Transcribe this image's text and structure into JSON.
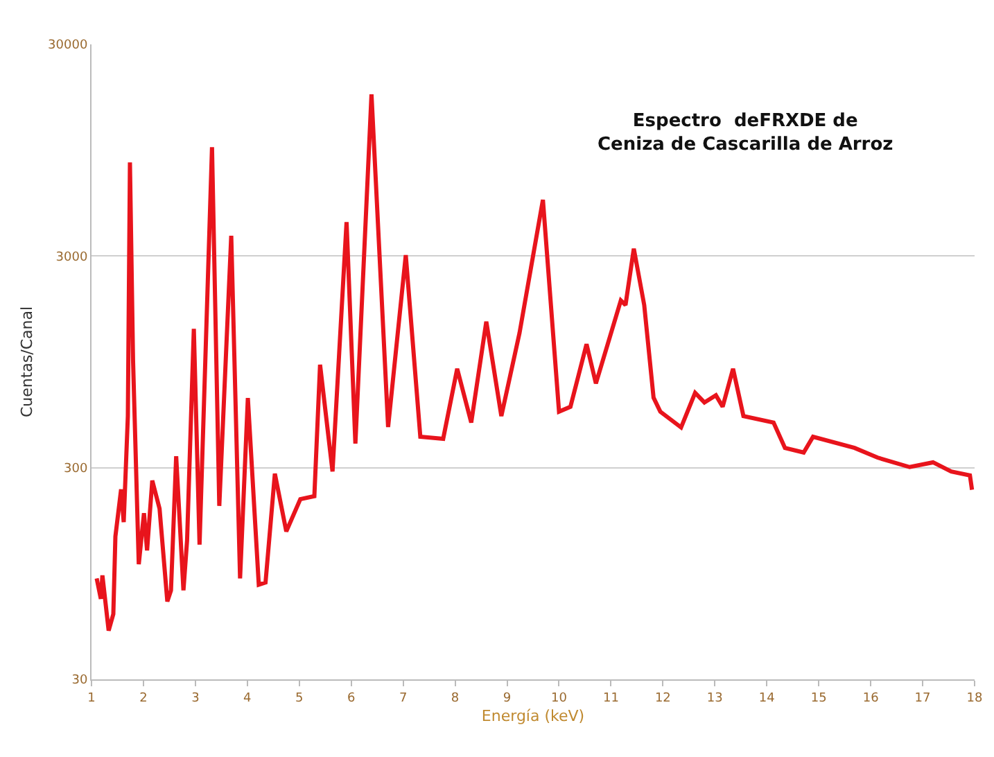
{
  "chart_data": {
    "type": "line",
    "title": "Espectro  deFRXDE de\nCeniza de Cascarilla de Arroz",
    "xlabel": "Energía (keV)",
    "ylabel": "Cuentas/Canal",
    "log": "y",
    "grid": "y",
    "marker": "none",
    "line_style": "solid",
    "xlim": [
      1,
      18
    ],
    "xticks": [
      1,
      2,
      3,
      4,
      5,
      6,
      7,
      8,
      9,
      10,
      11,
      12,
      13,
      14,
      15,
      16,
      17,
      18
    ],
    "ylim": [
      30,
      30000
    ],
    "yticks": [
      30,
      300,
      3000,
      30000
    ],
    "series": [
      {
        "color": "#e8141c",
        "x": [
          1.1,
          1.18,
          1.21,
          1.33,
          1.42,
          1.46,
          1.57,
          1.62,
          1.7,
          1.74,
          1.8,
          1.91,
          2.01,
          2.07,
          2.17,
          2.31,
          2.46,
          2.53,
          2.63,
          2.77,
          2.84,
          2.97,
          3.08,
          3.32,
          3.46,
          3.69,
          3.86,
          4.01,
          4.22,
          4.35,
          4.53,
          4.75,
          5.02,
          5.29,
          5.4,
          5.64,
          5.91,
          6.08,
          6.39,
          6.71,
          7.05,
          7.33,
          7.77,
          8.04,
          8.31,
          8.6,
          8.89,
          9.24,
          9.69,
          10.0,
          10.22,
          10.53,
          10.71,
          11.19,
          11.28,
          11.44,
          11.64,
          11.82,
          11.95,
          12.35,
          12.62,
          12.8,
          13.02,
          13.15,
          13.35,
          13.55,
          14.13,
          14.35,
          14.71,
          14.89,
          15.69,
          16.13,
          16.75,
          17.2,
          17.55,
          17.91,
          17.95
        ],
        "values": [
          90,
          72,
          93,
          51,
          61,
          142,
          237,
          166,
          526,
          8300,
          960,
          105,
          183,
          122,
          261,
          192,
          70,
          79,
          340,
          79,
          136,
          1360,
          130,
          9800,
          198,
          3740,
          90,
          640,
          84,
          86,
          281,
          150,
          213,
          220,
          920,
          288,
          4340,
          390,
          17400,
          467,
          3030,
          420,
          411,
          880,
          490,
          1470,
          526,
          1300,
          5530,
          552,
          582,
          1150,
          750,
          1850,
          1760,
          3250,
          1760,
          643,
          552,
          465,
          677,
          610,
          660,
          582,
          880,
          526,
          490,
          372,
          354,
          420,
          372,
          335,
          302,
          318,
          288,
          276,
          236
        ]
      }
    ]
  }
}
